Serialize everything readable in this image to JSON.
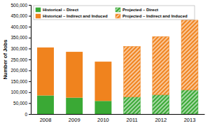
{
  "chart_data": {
    "type": "bar",
    "stacked": true,
    "y_label": "Number of Jobs",
    "categories": [
      "2008",
      "2009",
      "2010",
      "2011",
      "2012",
      "2013"
    ],
    "series": [
      {
        "name": "Historical – Direct",
        "color": "#3aa935",
        "values": [
          85000,
          75000,
          60000,
          null,
          null,
          null
        ]
      },
      {
        "name": "Historical – Indirect and Induced",
        "color": "#f0831e",
        "values": [
          220000,
          210000,
          180000,
          null,
          null,
          null
        ]
      },
      {
        "name": "Projected – Direct",
        "color": "#3aa935",
        "values": [
          null,
          null,
          null,
          78000,
          88000,
          110000
        ]
      },
      {
        "name": "Projected – Indirect and Induced",
        "color": "#f0831e",
        "values": [
          null,
          null,
          null,
          232000,
          267000,
          320000
        ]
      }
    ],
    "ylim": [
      0,
      500000
    ],
    "yticks": [
      0,
      {
        "value": 50000,
        "label": "50,000"
      },
      {
        "value": 100000,
        "label": "100,000"
      },
      {
        "value": 150000,
        "label": "150,000"
      },
      {
        "value": 200000,
        "label": "200,000"
      },
      {
        "value": 250000,
        "label": "250,000"
      },
      {
        "value": 300000,
        "label": "300,000"
      },
      {
        "value": 350000,
        "label": "350,000"
      },
      {
        "value": 400000,
        "label": "400,000"
      },
      {
        "value": 450000,
        "label": "450,000"
      },
      {
        "value": 500000,
        "label": "500,000"
      }
    ],
    "grid": false,
    "legend": "top-left"
  }
}
